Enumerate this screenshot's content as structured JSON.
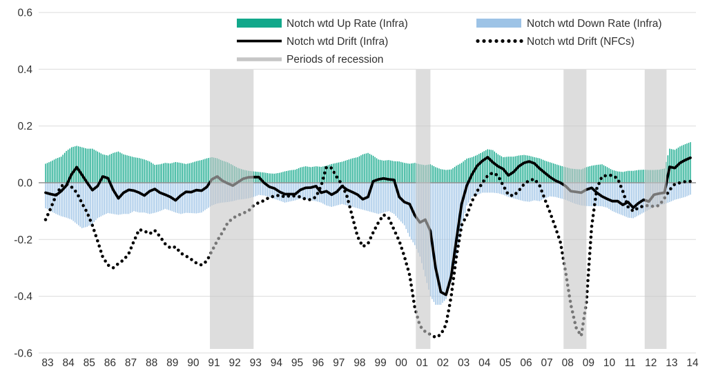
{
  "legend": {
    "items": [
      {
        "label": "Notch wtd Up Rate (Infra)",
        "type": "bar",
        "color": "#12A88B"
      },
      {
        "label": "Notch wtd Down Rate (Infra)",
        "type": "bar",
        "color": "#9DC3E6"
      },
      {
        "label": "Notch wtd Drift (Infra)",
        "type": "line",
        "color": "#000000"
      },
      {
        "label": "Notch wtd Drift (NFCs)",
        "type": "dotted",
        "color": "#000000"
      },
      {
        "label": "Periods of recession",
        "type": "band",
        "color": "#C6C6C6"
      }
    ]
  },
  "y_axis": {
    "ticks": [
      "0.6",
      "0.4",
      "0.2",
      "0.0",
      "-0.2",
      "-0.4",
      "-0.6"
    ],
    "min": -0.6,
    "max": 0.6
  },
  "x_axis": {
    "ticks": [
      "83",
      "84",
      "85",
      "86",
      "87",
      "88",
      "89",
      "90",
      "91",
      "92",
      "93",
      "94",
      "95",
      "96",
      "97",
      "98",
      "99",
      "00",
      "01",
      "02",
      "03",
      "04",
      "05",
      "06",
      "07",
      "08",
      "09",
      "10",
      "11",
      "12",
      "13",
      "14"
    ]
  },
  "chart_data": {
    "type": "bar",
    "subtype": "monthly bars with drift lines (combo bar+line)",
    "x_start": 1983.0,
    "x_end": 2014.0,
    "x_step_years": 0.25,
    "ylim": [
      -0.6,
      0.6
    ],
    "grid": "horizontal light gray, solid darker zero line",
    "legend_position": "top, two columns, overlaying plot top",
    "recession_periods": [
      [
        1990.9,
        1993.0
      ],
      [
        2000.8,
        2001.5
      ],
      [
        2007.9,
        2009.0
      ],
      [
        2011.8,
        2012.85
      ]
    ],
    "series": [
      {
        "name": "Notch wtd Up Rate (Infra)",
        "type": "bar",
        "color": "#12A88B",
        "values": [
          0.067,
          0.075,
          0.085,
          0.092,
          0.112,
          0.125,
          0.13,
          0.125,
          0.12,
          0.12,
          0.11,
          0.1,
          0.096,
          0.105,
          0.11,
          0.1,
          0.095,
          0.09,
          0.087,
          0.082,
          0.075,
          0.063,
          0.065,
          0.07,
          0.068,
          0.073,
          0.07,
          0.066,
          0.07,
          0.076,
          0.08,
          0.086,
          0.09,
          0.086,
          0.078,
          0.072,
          0.062,
          0.052,
          0.046,
          0.042,
          0.04,
          0.038,
          0.036,
          0.033,
          0.032,
          0.035,
          0.04,
          0.044,
          0.046,
          0.054,
          0.058,
          0.055,
          0.058,
          0.056,
          0.06,
          0.066,
          0.07,
          0.074,
          0.08,
          0.086,
          0.09,
          0.1,
          0.105,
          0.095,
          0.082,
          0.078,
          0.08,
          0.076,
          0.075,
          0.07,
          0.067,
          0.07,
          0.065,
          0.062,
          0.065,
          0.055,
          0.048,
          0.045,
          0.047,
          0.06,
          0.07,
          0.085,
          0.09,
          0.098,
          0.108,
          0.118,
          0.115,
          0.1,
          0.09,
          0.092,
          0.092,
          0.096,
          0.098,
          0.095,
          0.09,
          0.086,
          0.078,
          0.072,
          0.066,
          0.06,
          0.055,
          0.05,
          0.048,
          0.047,
          0.055,
          0.06,
          0.063,
          0.065,
          0.055,
          0.045,
          0.04,
          0.038,
          0.042,
          0.042,
          0.045,
          0.046,
          0.045,
          0.045,
          0.046,
          0.05,
          0.12,
          0.116,
          0.128,
          0.136,
          0.143
        ]
      },
      {
        "name": "Notch wtd Down Rate (Infra)",
        "type": "bar",
        "color": "#9DC3E6",
        "values": [
          -0.09,
          -0.1,
          -0.11,
          -0.118,
          -0.123,
          -0.13,
          -0.145,
          -0.16,
          -0.155,
          -0.145,
          -0.125,
          -0.115,
          -0.107,
          -0.11,
          -0.113,
          -0.11,
          -0.11,
          -0.1,
          -0.105,
          -0.105,
          -0.11,
          -0.106,
          -0.1,
          -0.092,
          -0.098,
          -0.105,
          -0.11,
          -0.106,
          -0.107,
          -0.108,
          -0.105,
          -0.092,
          -0.08,
          -0.073,
          -0.07,
          -0.068,
          -0.065,
          -0.06,
          -0.058,
          -0.055,
          -0.05,
          -0.043,
          -0.045,
          -0.05,
          -0.057,
          -0.063,
          -0.07,
          -0.066,
          -0.062,
          -0.056,
          -0.058,
          -0.062,
          -0.065,
          -0.07,
          -0.08,
          -0.085,
          -0.08,
          -0.075,
          -0.08,
          -0.085,
          -0.09,
          -0.095,
          -0.1,
          -0.105,
          -0.11,
          -0.105,
          -0.1,
          -0.11,
          -0.13,
          -0.15,
          -0.19,
          -0.22,
          -0.26,
          -0.33,
          -0.4,
          -0.43,
          -0.43,
          -0.41,
          -0.35,
          -0.26,
          -0.16,
          -0.08,
          -0.05,
          -0.043,
          -0.035,
          -0.035,
          -0.035,
          -0.037,
          -0.042,
          -0.05,
          -0.055,
          -0.06,
          -0.065,
          -0.067,
          -0.062,
          -0.065,
          -0.055,
          -0.048,
          -0.05,
          -0.055,
          -0.06,
          -0.068,
          -0.075,
          -0.08,
          -0.082,
          -0.083,
          -0.082,
          -0.083,
          -0.088,
          -0.1,
          -0.108,
          -0.115,
          -0.123,
          -0.125,
          -0.115,
          -0.105,
          -0.095,
          -0.086,
          -0.08,
          -0.075,
          -0.068,
          -0.06,
          -0.055,
          -0.05,
          -0.042
        ]
      },
      {
        "name": "Notch wtd Drift (Infra)",
        "type": "line",
        "color": "#000000",
        "values": [
          -0.035,
          -0.04,
          -0.044,
          -0.03,
          -0.01,
          0.03,
          0.055,
          0.028,
          0.0,
          -0.026,
          -0.012,
          0.022,
          0.016,
          -0.025,
          -0.055,
          -0.035,
          -0.025,
          -0.028,
          -0.035,
          -0.045,
          -0.03,
          -0.022,
          -0.035,
          -0.042,
          -0.05,
          -0.062,
          -0.045,
          -0.032,
          -0.033,
          -0.026,
          -0.028,
          -0.015,
          0.012,
          0.022,
          0.007,
          -0.002,
          -0.01,
          0.002,
          0.014,
          0.019,
          0.02,
          0.02,
          0.0,
          -0.014,
          -0.02,
          -0.032,
          -0.04,
          -0.04,
          -0.04,
          -0.025,
          -0.018,
          -0.017,
          -0.012,
          -0.035,
          -0.03,
          -0.042,
          -0.032,
          -0.012,
          -0.025,
          -0.033,
          -0.042,
          -0.058,
          -0.05,
          0.005,
          0.012,
          0.015,
          0.012,
          0.01,
          -0.05,
          -0.068,
          -0.075,
          -0.115,
          -0.14,
          -0.13,
          -0.17,
          -0.3,
          -0.385,
          -0.395,
          -0.33,
          -0.2,
          -0.075,
          -0.01,
          0.03,
          0.06,
          0.077,
          0.09,
          0.072,
          0.058,
          0.048,
          0.026,
          0.038,
          0.058,
          0.07,
          0.075,
          0.068,
          0.05,
          0.035,
          0.02,
          0.008,
          0.0,
          -0.012,
          -0.03,
          -0.032,
          -0.035,
          -0.024,
          -0.018,
          -0.035,
          -0.048,
          -0.057,
          -0.065,
          -0.065,
          -0.078,
          -0.068,
          -0.088,
          -0.072,
          -0.06,
          -0.066,
          -0.042,
          -0.038,
          -0.035,
          0.056,
          0.052,
          0.07,
          0.08,
          0.088
        ]
      },
      {
        "name": "Notch wtd Drift (NFCs)",
        "type": "dotted-line",
        "color": "#000000",
        "values": [
          -0.13,
          -0.09,
          -0.045,
          -0.012,
          -0.004,
          -0.015,
          -0.035,
          -0.072,
          -0.105,
          -0.15,
          -0.205,
          -0.262,
          -0.29,
          -0.3,
          -0.285,
          -0.272,
          -0.25,
          -0.205,
          -0.165,
          -0.17,
          -0.18,
          -0.168,
          -0.19,
          -0.215,
          -0.23,
          -0.226,
          -0.248,
          -0.258,
          -0.27,
          -0.283,
          -0.29,
          -0.276,
          -0.24,
          -0.205,
          -0.175,
          -0.142,
          -0.125,
          -0.115,
          -0.107,
          -0.1,
          -0.08,
          -0.07,
          -0.063,
          -0.052,
          -0.047,
          -0.044,
          -0.05,
          -0.046,
          -0.047,
          -0.05,
          -0.058,
          -0.06,
          -0.05,
          -0.01,
          0.055,
          0.052,
          0.02,
          -0.007,
          -0.05,
          -0.12,
          -0.19,
          -0.225,
          -0.215,
          -0.175,
          -0.14,
          -0.113,
          -0.125,
          -0.165,
          -0.205,
          -0.26,
          -0.325,
          -0.44,
          -0.505,
          -0.525,
          -0.535,
          -0.545,
          -0.535,
          -0.5,
          -0.4,
          -0.26,
          -0.15,
          -0.115,
          -0.065,
          -0.03,
          0.0,
          0.025,
          0.035,
          0.025,
          -0.01,
          -0.043,
          -0.046,
          -0.028,
          -0.005,
          0.008,
          0.013,
          -0.01,
          -0.058,
          -0.105,
          -0.155,
          -0.21,
          -0.315,
          -0.43,
          -0.51,
          -0.54,
          -0.42,
          -0.155,
          -0.02,
          0.022,
          0.026,
          0.026,
          0.015,
          -0.03,
          -0.085,
          -0.1,
          -0.088,
          -0.082,
          -0.08,
          -0.084,
          -0.08,
          -0.055,
          -0.025,
          -0.005,
          0.0,
          0.004,
          0.005
        ]
      }
    ]
  }
}
